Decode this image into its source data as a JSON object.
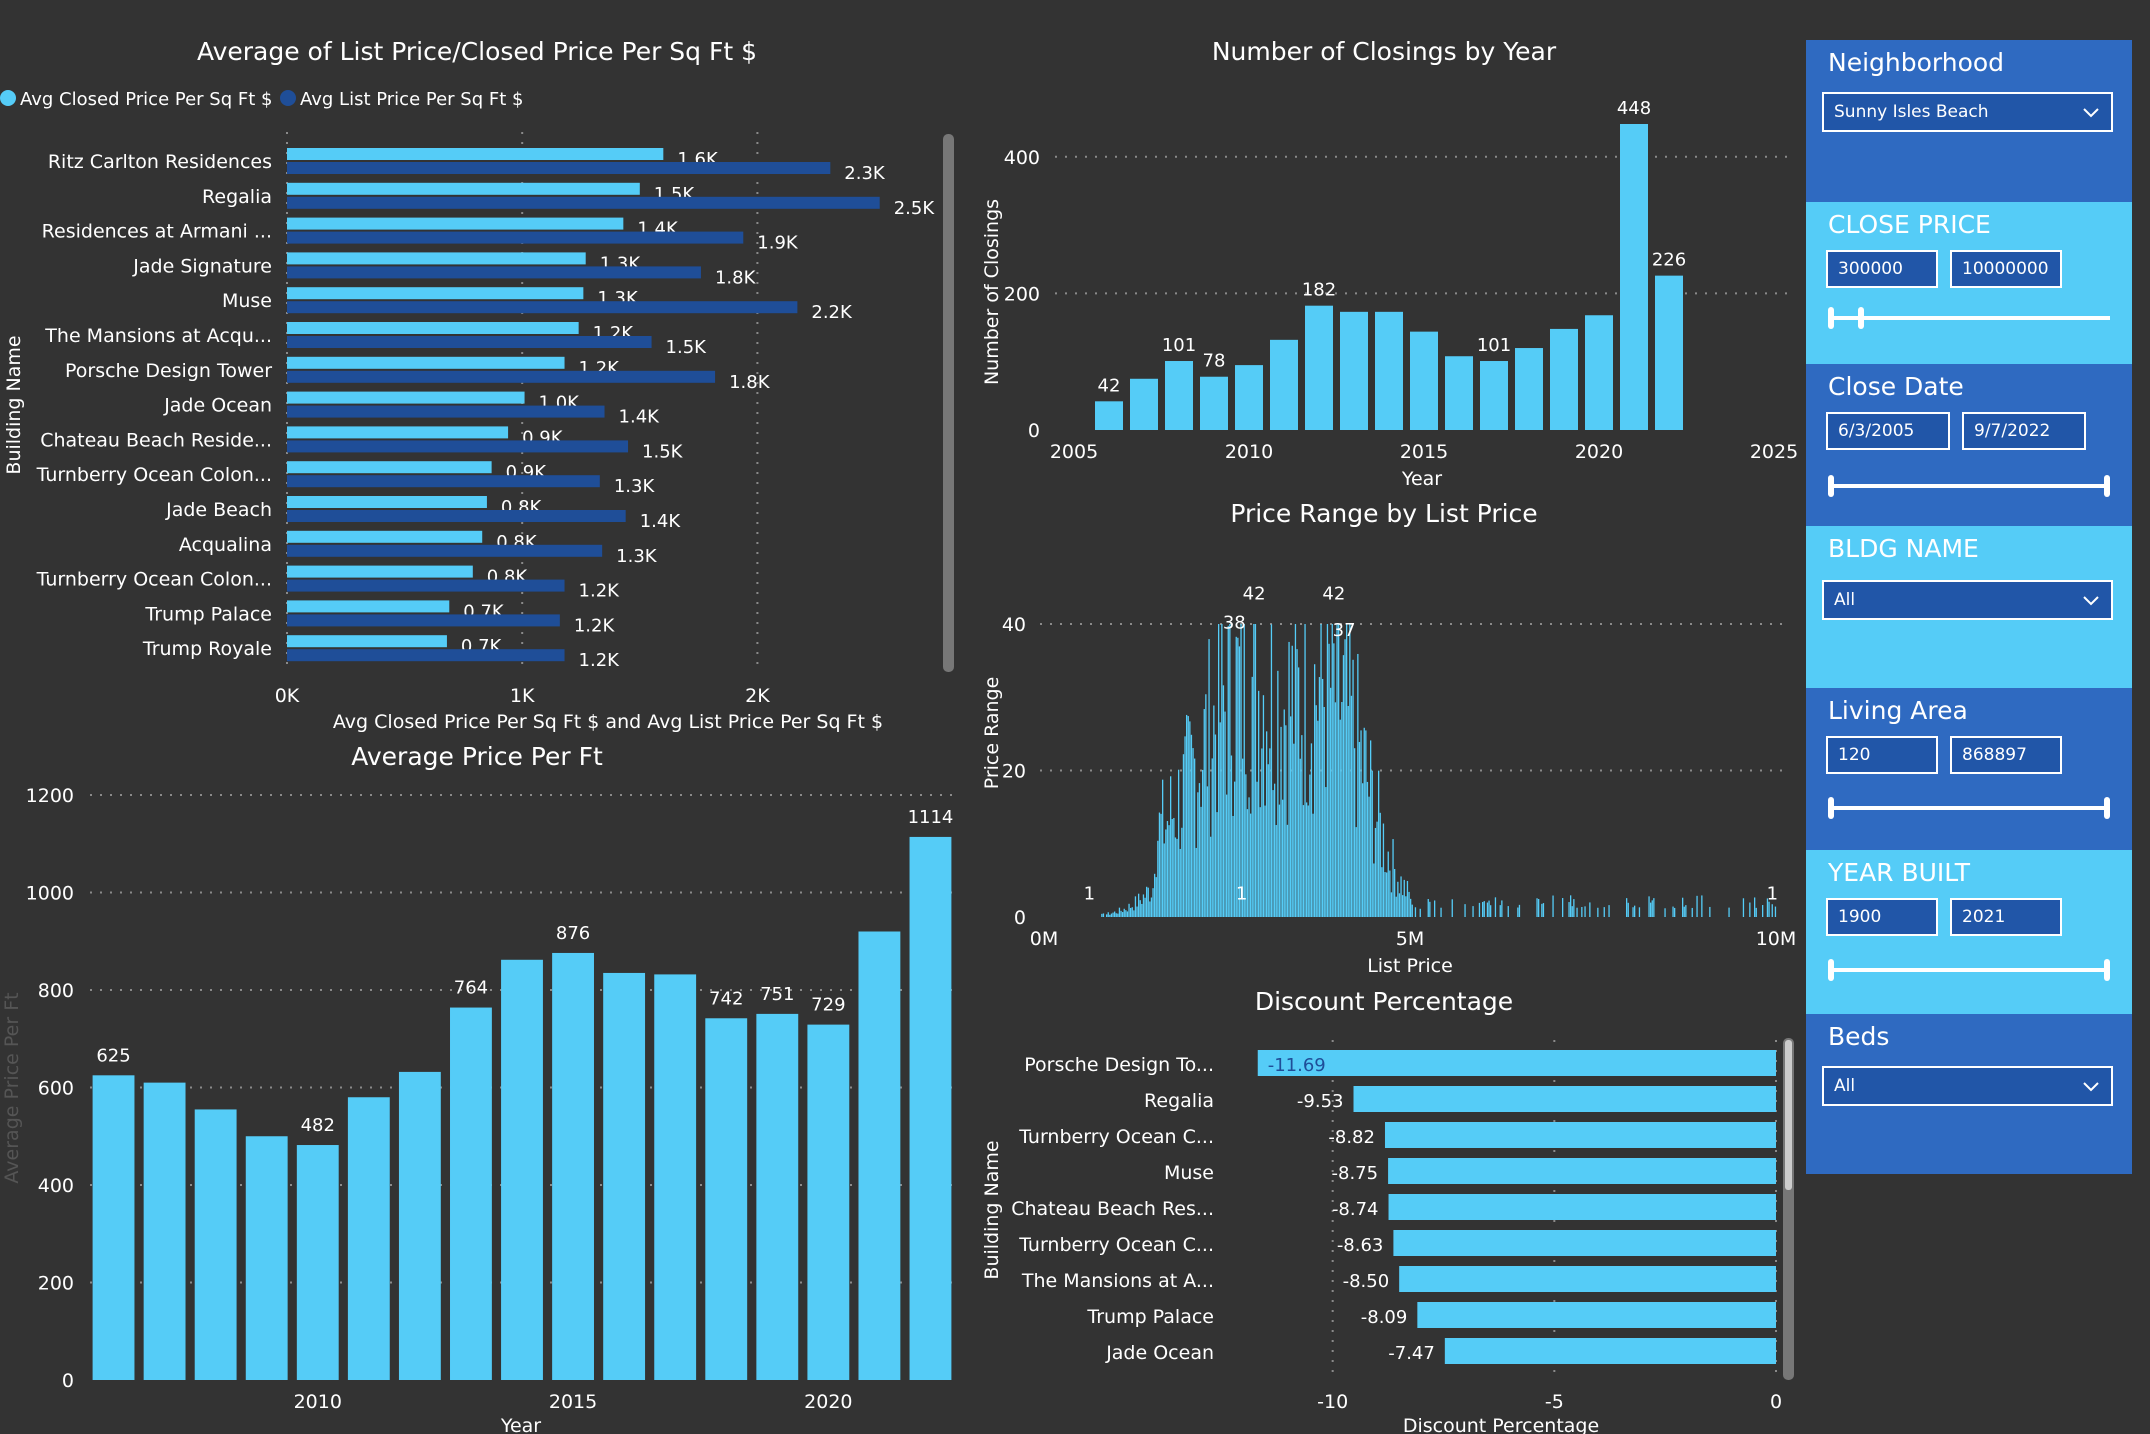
{
  "colors": {
    "background": "#333333",
    "light_series": "#55ccf7",
    "dark_series": "#1f4e98",
    "panel_dark": "#2f6ac1",
    "panel_light": "#55ccf7"
  },
  "chart_data": [
    {
      "id": "avg_list_closed",
      "type": "bar",
      "orientation": "horizontal",
      "title": "Average of List Price/Closed Price Per Sq Ft $",
      "xlabel": "Avg Closed Price Per Sq Ft $ and Avg List Price Per Sq Ft $",
      "ylabel": "Building Name",
      "xlim": [
        0,
        2500
      ],
      "x_ticks": [
        {
          "v": 0,
          "label": "0K"
        },
        {
          "v": 1000,
          "label": "1K"
        },
        {
          "v": 2000,
          "label": "2K"
        }
      ],
      "legend_position": "top-left",
      "categories": [
        "Ritz Carlton Residences",
        "Regalia",
        "Residences at Armani ...",
        "Jade Signature",
        "Muse",
        "The Mansions at Acqu...",
        "Porsche Design Tower",
        "Jade Ocean",
        "Chateau Beach Reside...",
        "Turnberry Ocean Colon...",
        "Jade Beach",
        "Acqualina",
        "Turnberry Ocean Colon...",
        "Trump Palace",
        "Trump Royale"
      ],
      "series": [
        {
          "name": "Avg Closed Price Per Sq Ft $",
          "values": [
            1600,
            1500,
            1430,
            1270,
            1260,
            1240,
            1180,
            1010,
            940,
            870,
            850,
            830,
            790,
            690,
            680
          ],
          "labels": [
            "1.6K",
            "1.5K",
            "1.4K",
            "1.3K",
            "1.3K",
            "1.2K",
            "1.2K",
            "1.0K",
            "0.9K",
            "0.9K",
            "0.8K",
            "0.8K",
            "0.8K",
            "0.7K",
            "0.7K"
          ]
        },
        {
          "name": "Avg List Price Per Sq Ft $",
          "values": [
            2310,
            2520,
            1940,
            1760,
            2170,
            1550,
            1820,
            1350,
            1450,
            1330,
            1440,
            1340,
            1180,
            1160,
            1180
          ],
          "labels": [
            "2.3K",
            "2.5K",
            "1.9K",
            "1.8K",
            "2.2K",
            "1.5K",
            "1.8K",
            "1.4K",
            "1.5K",
            "1.3K",
            "1.4K",
            "1.3K",
            "1.2K",
            "1.2K",
            "1.2K"
          ]
        }
      ]
    },
    {
      "id": "closings_by_year",
      "type": "bar",
      "title": "Number of Closings by Year",
      "xlabel": "Year",
      "ylabel": "Number of Closings",
      "ylim": [
        0,
        448
      ],
      "xlim": [
        2005,
        2025
      ],
      "y_ticks": [
        0,
        200,
        400
      ],
      "x_ticks": [
        2005,
        2010,
        2015,
        2020,
        2025
      ],
      "x": [
        2006,
        2007,
        2008,
        2009,
        2010,
        2011,
        2012,
        2013,
        2014,
        2015,
        2016,
        2017,
        2018,
        2019,
        2020,
        2021,
        2022
      ],
      "values": [
        42,
        75,
        101,
        78,
        95,
        132,
        182,
        173,
        173,
        144,
        108,
        101,
        120,
        148,
        168,
        448,
        226
      ],
      "labels": [
        "42",
        "",
        "101",
        "78",
        "",
        "",
        "182",
        "",
        "",
        "",
        "",
        "101",
        "",
        "",
        "",
        "448",
        "226"
      ]
    },
    {
      "id": "price_range",
      "type": "bar",
      "title": "Price Range by List Price",
      "xlabel": "List Price",
      "ylabel": "Price Range",
      "xlim": [
        0,
        10000000
      ],
      "ylim": [
        0,
        40
      ],
      "y_ticks": [
        0,
        20,
        40
      ],
      "x_ticks": [
        {
          "v": 0,
          "label": "0M"
        },
        {
          "v": 5000000,
          "label": "5M"
        },
        {
          "v": 10000000,
          "label": "10M"
        }
      ],
      "annotations": [
        {
          "x": 620000,
          "y": 1,
          "label": "1"
        },
        {
          "x": 2600000,
          "y": 38,
          "label": "38"
        },
        {
          "x": 2870000,
          "y": 42,
          "label": "42"
        },
        {
          "x": 3960000,
          "y": 42,
          "label": "42"
        },
        {
          "x": 4100000,
          "y": 37,
          "label": "37"
        },
        {
          "x": 2700000,
          "y": 1,
          "label": "1"
        },
        {
          "x": 9950000,
          "y": 1,
          "label": "1"
        }
      ]
    },
    {
      "id": "avg_price_per_ft",
      "type": "bar",
      "title": "Average Price Per Ft",
      "xlabel": "Year",
      "ylabel": "Average Price Per Ft",
      "ylim": [
        0,
        1200
      ],
      "y_ticks": [
        0,
        200,
        400,
        600,
        800,
        1000,
        1200
      ],
      "x_ticks": [
        2010,
        2015,
        2020
      ],
      "x": [
        2006,
        2007,
        2008,
        2009,
        2010,
        2011,
        2012,
        2013,
        2014,
        2015,
        2016,
        2017,
        2018,
        2019,
        2020,
        2021,
        2022
      ],
      "values": [
        625,
        610,
        555,
        500,
        482,
        580,
        632,
        764,
        862,
        876,
        835,
        832,
        742,
        751,
        729,
        920,
        1114
      ],
      "labels": [
        "625",
        "",
        "",
        "",
        "482",
        "",
        "",
        "764",
        "",
        "876",
        "",
        "",
        "742",
        "751",
        "729",
        "",
        "1114"
      ]
    },
    {
      "id": "discount_pct",
      "type": "bar",
      "orientation": "horizontal",
      "title": "Discount Percentage",
      "xlabel": "Discount Percentage",
      "ylabel": "Building Name",
      "xlim": [
        -12,
        0
      ],
      "x_ticks": [
        {
          "v": -10,
          "label": "-10"
        },
        {
          "v": -5,
          "label": "-5"
        },
        {
          "v": 0,
          "label": "0"
        }
      ],
      "categories": [
        "Porsche Design To...",
        "Regalia",
        "Turnberry Ocean C...",
        "Muse",
        "Chateau Beach Res...",
        "Turnberry Ocean C...",
        "The Mansions at A...",
        "Trump Palace",
        "Jade Ocean"
      ],
      "values": [
        -11.69,
        -9.53,
        -8.82,
        -8.75,
        -8.74,
        -8.63,
        -8.5,
        -8.09,
        -7.47
      ],
      "labels": [
        "-11.69",
        "-9.53",
        "-8.82",
        "-8.75",
        "-8.74",
        "-8.63",
        "-8.50",
        "-8.09",
        "-7.47"
      ]
    }
  ],
  "filters": {
    "neighborhood": {
      "title": "Neighborhood",
      "value": "Sunny Isles Beach"
    },
    "close_price": {
      "title": "CLOSE PRICE",
      "min": "300000",
      "max": "10000000",
      "slider_lo": 0.0,
      "slider_hi": 0.11
    },
    "close_date": {
      "title": "Close Date",
      "min": "6/3/2005",
      "max": "9/7/2022",
      "slider_lo": 0.0,
      "slider_hi": 1.0
    },
    "bldg_name": {
      "title": "BLDG NAME",
      "value": "All"
    },
    "living_area": {
      "title": "Living Area",
      "min": "120",
      "max": "868897",
      "slider_lo": 0.0,
      "slider_hi": 1.0
    },
    "year_built": {
      "title": "YEAR BUILT",
      "min": "1900",
      "max": "2021",
      "slider_lo": 0.0,
      "slider_hi": 1.0
    },
    "beds": {
      "title": "Beds",
      "value": "All"
    }
  }
}
